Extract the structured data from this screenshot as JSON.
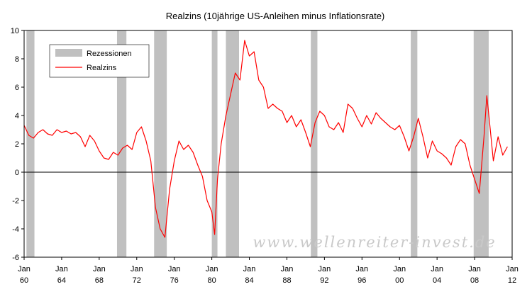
{
  "chart_data": {
    "type": "line",
    "title": "Realzins (10jährige US-Anleihen minus Inflationsrate)",
    "xlabel": "",
    "ylabel": "",
    "xlim": [
      1960,
      2012
    ],
    "ylim": [
      -6,
      10
    ],
    "y_ticks": [
      10,
      8,
      6,
      4,
      2,
      0,
      -2,
      -4,
      -6
    ],
    "x_ticks": [
      {
        "year": 1960,
        "month": "Jan",
        "yy": "60"
      },
      {
        "year": 1964,
        "month": "Jan",
        "yy": "64"
      },
      {
        "year": 1968,
        "month": "Jan",
        "yy": "68"
      },
      {
        "year": 1972,
        "month": "Jan",
        "yy": "72"
      },
      {
        "year": 1976,
        "month": "Jan",
        "yy": "76"
      },
      {
        "year": 1980,
        "month": "Jan",
        "yy": "80"
      },
      {
        "year": 1984,
        "month": "Jan",
        "yy": "84"
      },
      {
        "year": 1988,
        "month": "Jan",
        "yy": "88"
      },
      {
        "year": 1992,
        "month": "Jan",
        "yy": "92"
      },
      {
        "year": 1996,
        "month": "Jan",
        "yy": "96"
      },
      {
        "year": 2000,
        "month": "Jan",
        "yy": "00"
      },
      {
        "year": 2004,
        "month": "Jan",
        "yy": "04"
      },
      {
        "year": 2008,
        "month": "Jan",
        "yy": "08"
      },
      {
        "year": 2012,
        "month": "Jan",
        "yy": "12"
      }
    ],
    "grid": false,
    "legend_position": "top-left",
    "legend": [
      {
        "label": "Rezessionen",
        "kind": "band",
        "color": "#c0c0c0"
      },
      {
        "label": "Realzins",
        "kind": "line",
        "color": "#ff0000"
      }
    ],
    "recessions": [
      {
        "start": 1960.25,
        "end": 1961.1
      },
      {
        "start": 1969.9,
        "end": 1970.9
      },
      {
        "start": 1973.85,
        "end": 1975.2
      },
      {
        "start": 1980.0,
        "end": 1980.6
      },
      {
        "start": 1981.5,
        "end": 1982.9
      },
      {
        "start": 1990.55,
        "end": 1991.25
      },
      {
        "start": 2001.2,
        "end": 2001.9
      },
      {
        "start": 2007.9,
        "end": 2009.5
      }
    ],
    "series": [
      {
        "name": "Realzins",
        "color": "#ff0000",
        "x": [
          1960.0,
          1960.5,
          1961.0,
          1961.5,
          1962.0,
          1962.5,
          1963.0,
          1963.5,
          1964.0,
          1964.5,
          1965.0,
          1965.5,
          1966.0,
          1966.5,
          1967.0,
          1967.5,
          1968.0,
          1968.5,
          1969.0,
          1969.5,
          1970.0,
          1970.5,
          1971.0,
          1971.5,
          1972.0,
          1972.5,
          1973.0,
          1973.5,
          1974.0,
          1974.5,
          1975.0,
          1975.5,
          1976.0,
          1976.5,
          1977.0,
          1977.5,
          1978.0,
          1978.5,
          1979.0,
          1979.5,
          1980.0,
          1980.3,
          1980.6,
          1981.0,
          1981.5,
          1982.0,
          1982.5,
          1983.0,
          1983.5,
          1984.0,
          1984.5,
          1985.0,
          1985.5,
          1986.0,
          1986.5,
          1987.0,
          1987.5,
          1988.0,
          1988.5,
          1989.0,
          1989.5,
          1990.0,
          1990.5,
          1991.0,
          1991.5,
          1992.0,
          1992.5,
          1993.0,
          1993.5,
          1994.0,
          1994.5,
          1995.0,
          1995.5,
          1996.0,
          1996.5,
          1997.0,
          1997.5,
          1998.0,
          1998.5,
          1999.0,
          1999.5,
          2000.0,
          2000.5,
          2001.0,
          2001.5,
          2002.0,
          2002.5,
          2003.0,
          2003.5,
          2004.0,
          2004.5,
          2005.0,
          2005.5,
          2006.0,
          2006.5,
          2007.0,
          2007.5,
          2008.0,
          2008.5,
          2009.0,
          2009.3,
          2009.6,
          2010.0,
          2010.5,
          2011.0,
          2011.5
        ],
        "values": [
          3.3,
          2.6,
          2.4,
          2.8,
          3.0,
          2.7,
          2.6,
          3.0,
          2.8,
          2.9,
          2.7,
          2.8,
          2.5,
          1.8,
          2.6,
          2.2,
          1.5,
          1.0,
          0.9,
          1.4,
          1.2,
          1.7,
          1.9,
          1.6,
          2.8,
          3.2,
          2.2,
          0.8,
          -2.5,
          -4.0,
          -4.6,
          -1.2,
          0.8,
          2.2,
          1.6,
          1.9,
          1.4,
          0.5,
          -0.3,
          -2.0,
          -2.8,
          -4.4,
          -0.5,
          2.0,
          4.0,
          5.5,
          7.0,
          6.5,
          9.3,
          8.2,
          8.5,
          6.5,
          6.0,
          4.5,
          4.8,
          4.5,
          4.3,
          3.5,
          4.0,
          3.2,
          3.7,
          2.8,
          1.8,
          3.5,
          4.3,
          4.0,
          3.2,
          3.0,
          3.5,
          2.8,
          4.8,
          4.5,
          3.8,
          3.2,
          4.0,
          3.4,
          4.2,
          3.8,
          3.5,
          3.2,
          3.0,
          3.3,
          2.5,
          1.5,
          2.5,
          3.8,
          2.5,
          1.0,
          2.2,
          1.5,
          1.3,
          1.0,
          0.5,
          1.8,
          2.3,
          2.0,
          0.5,
          -0.5,
          -1.5,
          2.5,
          5.4,
          3.5,
          0.8,
          2.5,
          1.2,
          1.8
        ]
      }
    ]
  },
  "watermark": "www.wellenreiter-invest.de"
}
